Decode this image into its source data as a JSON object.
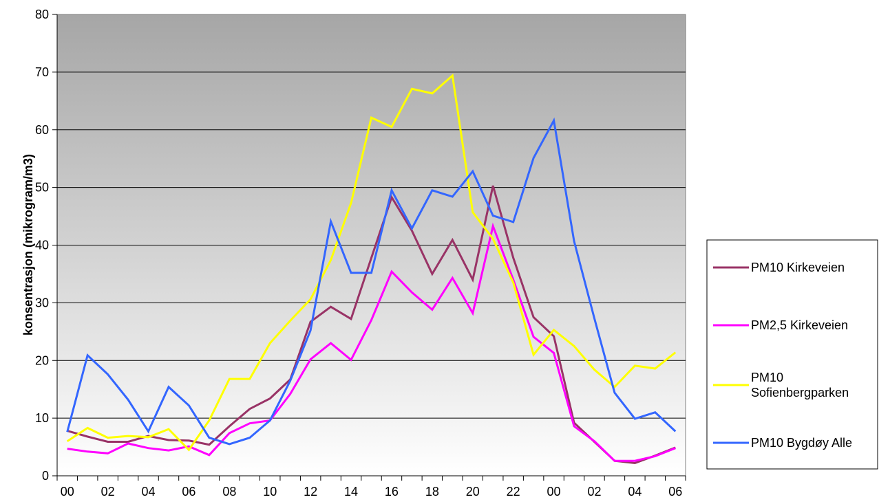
{
  "chart_data": {
    "type": "line",
    "title": "",
    "xlabel": "",
    "ylabel": "konsentrasjon (mikrogram/m3)",
    "ylim": [
      0,
      80
    ],
    "yticks": [
      "0",
      "10",
      "20",
      "30",
      "40",
      "50",
      "60",
      "70",
      "80"
    ],
    "grid": "horizontal",
    "background": "gradient grey (dark top) to white (bottom)",
    "legend_position": "right",
    "categories": [
      "00",
      "01",
      "02",
      "03",
      "04",
      "05",
      "06",
      "07",
      "08",
      "09",
      "10",
      "11",
      "12",
      "13",
      "14",
      "15",
      "16",
      "17",
      "18",
      "19",
      "20",
      "21",
      "22",
      "23",
      "00",
      "01",
      "02",
      "03",
      "04",
      "05",
      "06"
    ],
    "xtick_labels": [
      "00",
      "",
      "02",
      "",
      "04",
      "",
      "06",
      "",
      "08",
      "",
      "10",
      "",
      "12",
      "",
      "14",
      "",
      "16",
      "",
      "18",
      "",
      "20",
      "",
      "22",
      "",
      "00",
      "",
      "02",
      "",
      "04",
      "",
      "06"
    ],
    "series": [
      {
        "name": "PM10 Kirkeveien",
        "color": "#993366",
        "values": [
          7.8,
          6.8,
          5.9,
          5.9,
          6.9,
          6.2,
          6.1,
          5.4,
          8.6,
          11.6,
          13.4,
          16.7,
          26.7,
          29.3,
          27.2,
          37.8,
          48.3,
          42.5,
          35.0,
          40.9,
          34.0,
          50.3,
          37.8,
          27.5,
          24.2,
          9.2,
          5.9,
          2.6,
          2.2,
          3.5,
          4.9
        ]
      },
      {
        "name": "PM2,5 Kirkeveien",
        "color": "#ff00ff",
        "values": [
          4.7,
          4.2,
          3.9,
          5.6,
          4.8,
          4.4,
          5.1,
          3.6,
          7.4,
          9.1,
          9.6,
          14.2,
          20.2,
          23.0,
          20.1,
          27.0,
          35.4,
          31.8,
          28.8,
          34.3,
          28.2,
          43.3,
          34.0,
          24.1,
          21.3,
          8.6,
          6.0,
          2.6,
          2.6,
          3.4,
          4.8
        ]
      },
      {
        "name": "PM10 Sofienbergparken",
        "name_lines": [
          "PM10",
          "Sofienbergparken"
        ],
        "color": "#ffff00",
        "values": [
          6.0,
          8.3,
          6.6,
          6.9,
          6.7,
          8.1,
          4.5,
          9.6,
          16.8,
          16.8,
          23.0,
          26.9,
          30.6,
          37.4,
          47.3,
          62.1,
          60.5,
          67.1,
          66.3,
          69.4,
          45.7,
          41.1,
          33.5,
          21.0,
          25.3,
          22.5,
          18.4,
          15.4,
          19.1,
          18.6,
          21.4
        ]
      },
      {
        "name": "PM10 Bygdøy Alle",
        "color": "#3366ff",
        "values": [
          7.6,
          20.9,
          17.6,
          13.2,
          7.7,
          15.4,
          12.2,
          6.6,
          5.5,
          6.6,
          9.6,
          16.5,
          25.2,
          44.1,
          35.2,
          35.2,
          49.5,
          42.9,
          49.5,
          48.4,
          52.8,
          45.1,
          44.0,
          55.1,
          61.6,
          40.7,
          27.3,
          14.4,
          9.9,
          11.0,
          7.7
        ]
      }
    ]
  }
}
